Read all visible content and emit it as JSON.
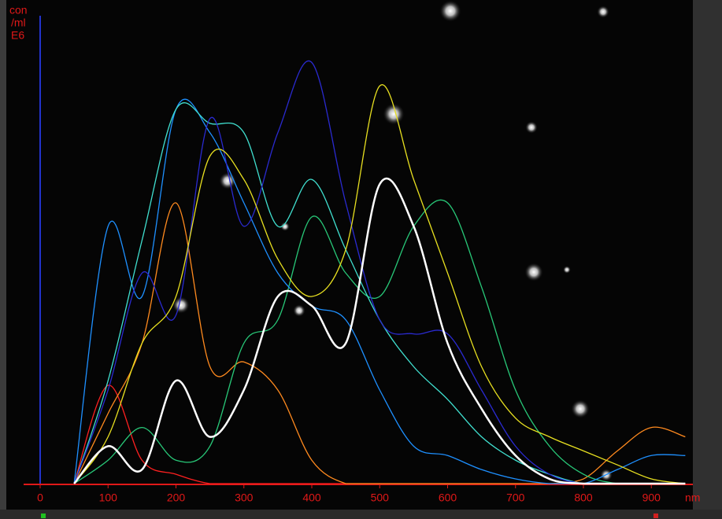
{
  "chart_data": {
    "type": "line",
    "y_label": [
      "con",
      "/ml",
      "E6"
    ],
    "x_label": "nm",
    "x": [
      50,
      100,
      150,
      200,
      250,
      300,
      350,
      400,
      450,
      500,
      550,
      600,
      650,
      700,
      750,
      800,
      850,
      900,
      950
    ],
    "xlim": [
      0,
      960
    ],
    "xticks": [
      0,
      100,
      200,
      300,
      400,
      500,
      600,
      700,
      800,
      900
    ],
    "ylim": [
      0,
      100
    ],
    "series": [
      {
        "color": "#ff2020",
        "values": [
          0,
          21,
          5,
          2,
          0,
          0,
          0,
          0,
          0,
          0,
          0,
          0,
          0,
          0,
          0,
          0,
          0,
          0,
          0
        ]
      },
      {
        "color": "#ff8a1e",
        "values": [
          0,
          15,
          30,
          60,
          25,
          26,
          20,
          5,
          0,
          0,
          0,
          0,
          0,
          0,
          0,
          1,
          7,
          12,
          10
        ]
      },
      {
        "color": "#28c878",
        "values": [
          0,
          5,
          12,
          5,
          8,
          30,
          35,
          57,
          45,
          40,
          55,
          60,
          42,
          20,
          8,
          2,
          0,
          0,
          0
        ]
      },
      {
        "color": "#1e90ff",
        "values": [
          0,
          55,
          40,
          80,
          75,
          60,
          45,
          38,
          35,
          20,
          8,
          6,
          3,
          1,
          0,
          0,
          3,
          6,
          6
        ]
      },
      {
        "color": "#40e0d0",
        "values": [
          0,
          22,
          52,
          80,
          77,
          75,
          55,
          65,
          50,
          35,
          25,
          18,
          10,
          5,
          2,
          0,
          0,
          0,
          0
        ]
      },
      {
        "color": "#2a2ad0",
        "values": [
          0,
          20,
          45,
          36,
          78,
          55,
          75,
          90,
          60,
          35,
          32,
          32,
          20,
          8,
          2,
          0,
          0,
          0,
          0
        ]
      },
      {
        "color": "#e8e020",
        "values": [
          0,
          10,
          30,
          40,
          70,
          65,
          48,
          40,
          50,
          85,
          65,
          45,
          25,
          14,
          10,
          7,
          4,
          1,
          0
        ]
      },
      {
        "color": "#ffffff",
        "values": [
          0,
          8,
          3,
          22,
          10,
          20,
          40,
          38,
          30,
          64,
          55,
          30,
          16,
          6,
          1,
          0,
          0,
          0,
          0
        ]
      }
    ]
  }
}
